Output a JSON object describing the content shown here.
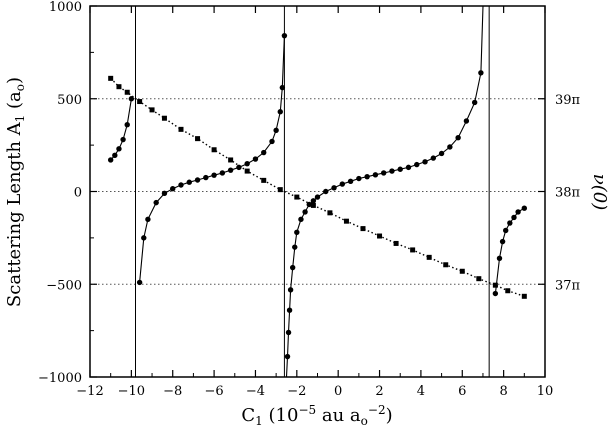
{
  "chart_data": {
    "type": "scatter",
    "title": "",
    "xlabel": {
      "main": "C",
      "sub": "1",
      "rest": " (10",
      "sup1": "−5",
      "mid": " au a",
      "sub2": "o",
      "sup2": "−2",
      "end": ")"
    },
    "ylabel": {
      "main": "Scattering Length A",
      "sub": "1",
      "open": " (a",
      "sub2": "o",
      "close": ")"
    },
    "y2label": "ν(0)",
    "xlim": [
      -12,
      10
    ],
    "ylim": [
      -1000,
      1000
    ],
    "xticks": [
      -12,
      -10,
      -8,
      -6,
      -4,
      -2,
      0,
      2,
      4,
      6,
      8,
      10
    ],
    "yticks": [
      -1000,
      -500,
      0,
      500,
      1000
    ],
    "xticklabels": [
      "−12",
      "−10",
      "−8",
      "−6",
      "−4",
      "−2",
      "0",
      "2",
      "4",
      "6",
      "8",
      "10"
    ],
    "yticklabels": [
      "−1000",
      "−500",
      "0",
      "500",
      "1000"
    ],
    "y2ticks": [
      {
        "label": "39π",
        "y_left": 500
      },
      {
        "label": "38π",
        "y_left": 0
      },
      {
        "label": "37π",
        "y_left": -500
      }
    ],
    "grid": "horizontal dotted lines at y2 ticks",
    "poles": [
      -9.8,
      -2.6,
      7.3
    ],
    "series": [
      {
        "marker": "circle",
        "line": "solid",
        "branches": [
          [
            [
              -11,
              170
            ],
            [
              -10.8,
              195
            ],
            [
              -10.6,
              230
            ],
            [
              -10.4,
              280
            ],
            [
              -10.2,
              360
            ],
            [
              -10.0,
              500
            ]
          ],
          [
            [
              -9.6,
              -490
            ],
            [
              -9.4,
              -250
            ],
            [
              -9.2,
              -150
            ],
            [
              -8.8,
              -60
            ],
            [
              -8.4,
              -10
            ],
            [
              -8.0,
              15
            ],
            [
              -7.6,
              35
            ],
            [
              -7.2,
              50
            ],
            [
              -6.8,
              62
            ],
            [
              -6.4,
              75
            ],
            [
              -6.0,
              88
            ],
            [
              -5.6,
              100
            ],
            [
              -5.2,
              115
            ],
            [
              -4.8,
              130
            ],
            [
              -4.4,
              150
            ],
            [
              -4.0,
              175
            ],
            [
              -3.6,
              210
            ],
            [
              -3.2,
              270
            ],
            [
              -3.0,
              330
            ],
            [
              -2.8,
              430
            ],
            [
              -2.7,
              560
            ],
            [
              -2.6,
              840
            ]
          ],
          [
            [
              -2.5,
              -1000
            ],
            [
              -2.45,
              -890
            ],
            [
              -2.4,
              -760
            ],
            [
              -2.35,
              -640
            ],
            [
              -2.3,
              -530
            ],
            [
              -2.2,
              -410
            ],
            [
              -2.1,
              -300
            ],
            [
              -2.0,
              -220
            ],
            [
              -1.8,
              -150
            ],
            [
              -1.6,
              -110
            ],
            [
              -1.4,
              -70
            ],
            [
              -1.2,
              -50
            ],
            [
              -1.0,
              -30
            ],
            [
              -0.6,
              0
            ],
            [
              -0.2,
              20
            ],
            [
              0.2,
              40
            ],
            [
              0.6,
              55
            ],
            [
              1.0,
              70
            ],
            [
              1.4,
              80
            ],
            [
              1.8,
              90
            ],
            [
              2.2,
              100
            ],
            [
              2.6,
              110
            ],
            [
              3.0,
              120
            ],
            [
              3.4,
              130
            ],
            [
              3.8,
              145
            ],
            [
              4.2,
              160
            ],
            [
              4.6,
              180
            ],
            [
              5.0,
              205
            ],
            [
              5.4,
              240
            ],
            [
              5.8,
              290
            ],
            [
              6.2,
              380
            ],
            [
              6.6,
              480
            ],
            [
              6.9,
              640
            ],
            [
              7.0,
              1000
            ]
          ],
          [
            [
              7.6,
              -550
            ],
            [
              7.8,
              -360
            ],
            [
              7.95,
              -270
            ],
            [
              8.1,
              -210
            ],
            [
              8.3,
              -170
            ],
            [
              8.5,
              -140
            ],
            [
              8.7,
              -110
            ],
            [
              9.0,
              -90
            ]
          ]
        ]
      },
      {
        "marker": "square",
        "line": "dotted",
        "points": [
          [
            -11,
            610
          ],
          [
            -10.6,
            565
          ],
          [
            -10.2,
            535
          ],
          [
            -9.6,
            485
          ],
          [
            -9.0,
            440
          ],
          [
            -8.4,
            395
          ],
          [
            -7.6,
            335
          ],
          [
            -6.8,
            285
          ],
          [
            -6.0,
            225
          ],
          [
            -5.2,
            170
          ],
          [
            -4.4,
            110
          ],
          [
            -3.6,
            60
          ],
          [
            -2.8,
            10
          ],
          [
            -2.0,
            -30
          ],
          [
            -1.2,
            -75
          ],
          [
            -0.4,
            -115
          ],
          [
            0.4,
            -160
          ],
          [
            1.2,
            -200
          ],
          [
            2.0,
            -240
          ],
          [
            2.8,
            -280
          ],
          [
            3.6,
            -315
          ],
          [
            4.4,
            -355
          ],
          [
            5.2,
            -395
          ],
          [
            6.0,
            -430
          ],
          [
            6.8,
            -470
          ],
          [
            7.6,
            -505
          ],
          [
            8.2,
            -535
          ],
          [
            9.0,
            -565
          ]
        ]
      }
    ]
  }
}
